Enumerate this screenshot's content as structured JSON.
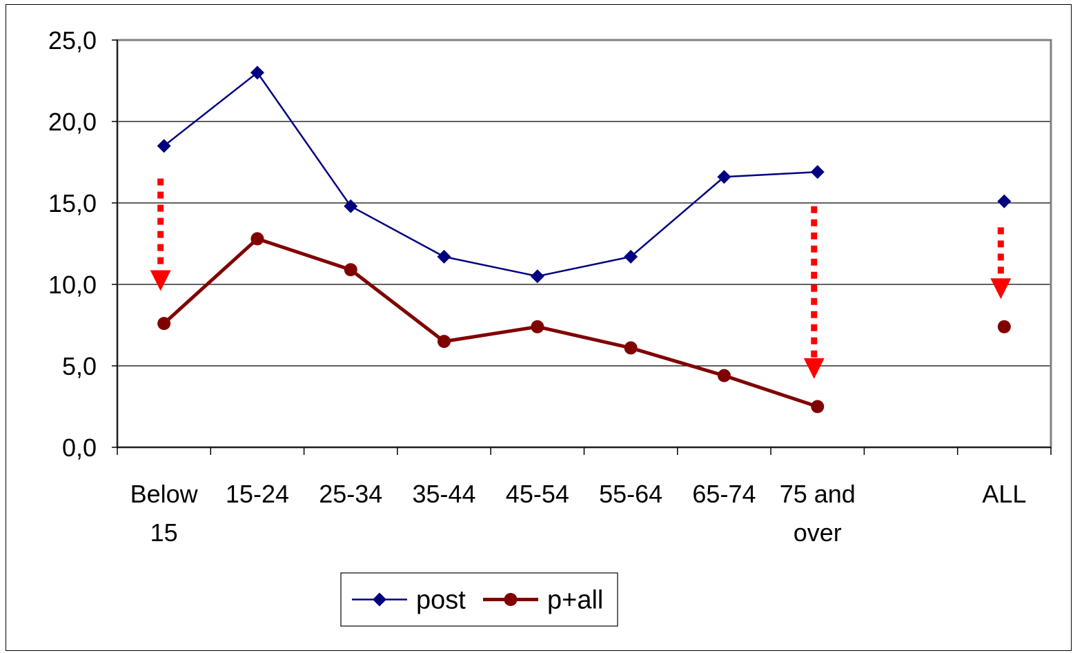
{
  "chart_data": {
    "type": "line",
    "title": "",
    "xlabel": "",
    "ylabel": "",
    "ylim": [
      0,
      25
    ],
    "y_ticks": [
      "0,0",
      "5,0",
      "10,0",
      "15,0",
      "20,0",
      "25,0"
    ],
    "y_tick_values": [
      0,
      5,
      10,
      15,
      20,
      25
    ],
    "categories": [
      [
        "Below",
        "15"
      ],
      [
        "15-24"
      ],
      [
        "25-34"
      ],
      [
        "35-44"
      ],
      [
        "45-54"
      ],
      [
        "55-64"
      ],
      [
        "65-74"
      ],
      [
        "75 and",
        "over"
      ],
      [
        ""
      ],
      [
        "ALL"
      ]
    ],
    "series": [
      {
        "name": "post",
        "color": "#000080",
        "marker": "diamond",
        "values": [
          18.5,
          23.0,
          14.8,
          11.7,
          10.5,
          11.7,
          16.6,
          16.9,
          null,
          15.1
        ]
      },
      {
        "name": "p+all",
        "color": "#800000",
        "marker": "circle",
        "values": [
          7.6,
          12.8,
          10.9,
          6.5,
          7.4,
          6.1,
          4.4,
          2.5,
          null,
          7.4
        ]
      }
    ],
    "annotations": [
      {
        "type": "dashed-arrow",
        "color": "#ff0000",
        "category_index": 0,
        "from": 16.5,
        "to": 9.6
      },
      {
        "type": "dashed-arrow",
        "color": "#ff0000",
        "category_index": 7,
        "from": 14.8,
        "to": 4.2
      },
      {
        "type": "dashed-arrow",
        "color": "#ff0000",
        "category_index": 9,
        "from": 13.5,
        "to": 9.1
      }
    ],
    "grid": true,
    "legend": {
      "position": "bottom",
      "entries": [
        "post",
        "p+all"
      ]
    },
    "plot_border_color": "#808080",
    "gridline_color": "#000000"
  }
}
